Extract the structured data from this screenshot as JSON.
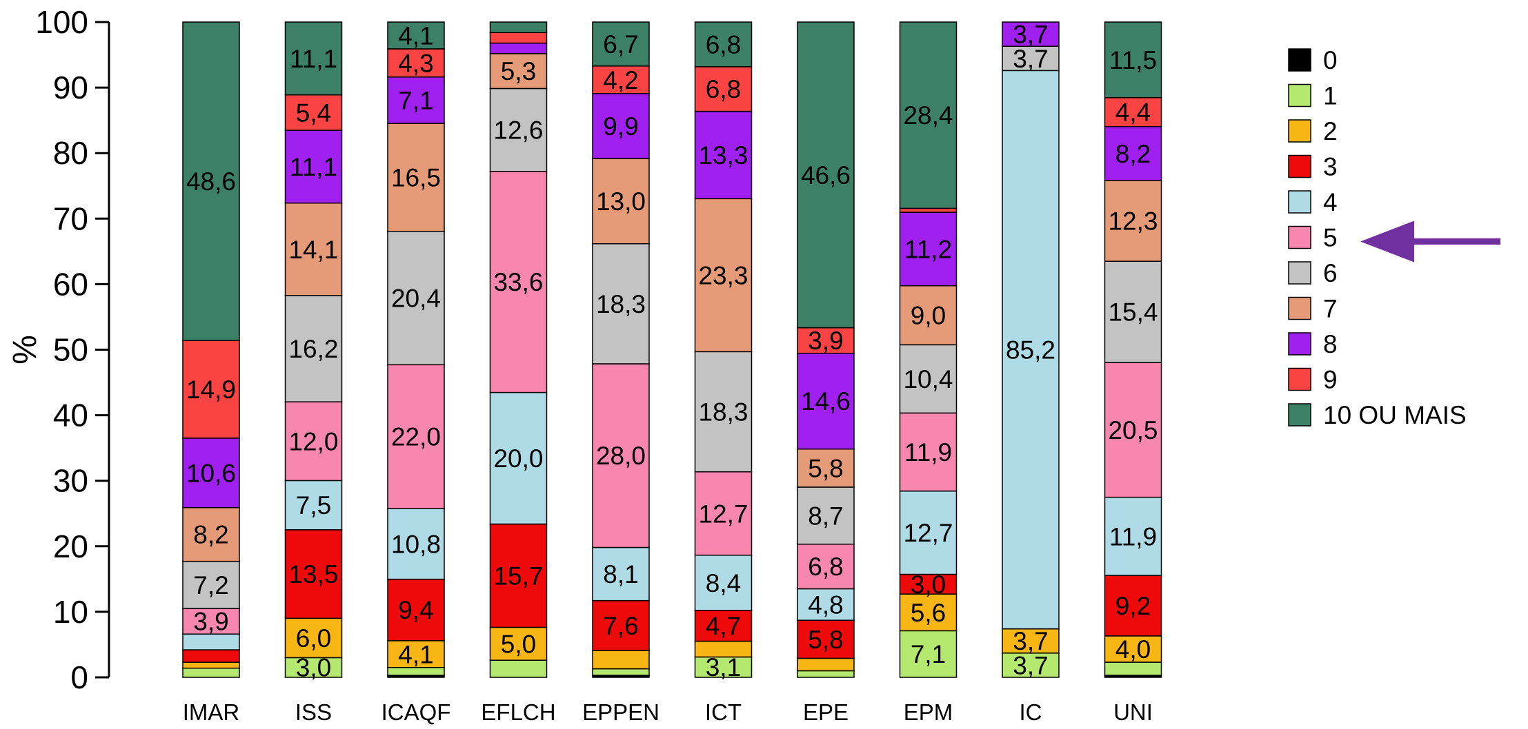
{
  "chart_data": {
    "type": "bar",
    "stacked": true,
    "ylabel": "%",
    "ylim": [
      0,
      100
    ],
    "yticks": [
      0,
      10,
      20,
      30,
      40,
      50,
      60,
      70,
      80,
      90,
      100
    ],
    "categories": [
      "IMAR",
      "ISS",
      "ICAQF",
      "EFLCH",
      "EPPEN",
      "ICT",
      "EPE",
      "EPM",
      "IC",
      "UNI"
    ],
    "legend_position": "right",
    "series": [
      {
        "name": "0",
        "color": "#000000",
        "values": [
          0.0,
          0.0,
          0.3,
          0.0,
          0.3,
          0.0,
          0.0,
          0.0,
          0.0,
          0.3
        ],
        "labels": [
          "",
          "",
          "",
          "",
          "",
          "",
          "",
          "",
          "",
          ""
        ]
      },
      {
        "name": "1",
        "color": "#b5e86e",
        "values": [
          1.4,
          3.0,
          1.2,
          2.6,
          1.0,
          3.1,
          1.0,
          7.1,
          3.7,
          2.0
        ],
        "labels": [
          "",
          "3,0",
          "",
          "",
          "",
          "3,1",
          "",
          "7,1",
          "3,7",
          ""
        ]
      },
      {
        "name": "2",
        "color": "#f8b614",
        "values": [
          0.9,
          6.0,
          4.1,
          5.0,
          2.8,
          2.4,
          1.9,
          5.6,
          3.7,
          4.0
        ],
        "labels": [
          "",
          "6,0",
          "4,1",
          "5,0",
          "",
          "",
          "",
          "5,6",
          "3,7",
          "4,0"
        ]
      },
      {
        "name": "3",
        "color": "#ee0a0a",
        "values": [
          1.9,
          13.5,
          9.4,
          15.7,
          7.6,
          4.7,
          5.8,
          3.0,
          0.0,
          9.2
        ],
        "labels": [
          "",
          "13,5",
          "9,4",
          "15,7",
          "7,6",
          "4,7",
          "5,8",
          "3,0",
          "",
          "9,2"
        ]
      },
      {
        "name": "4",
        "color": "#aedbe6",
        "values": [
          2.4,
          7.5,
          10.8,
          20.0,
          8.1,
          8.4,
          4.8,
          12.7,
          85.2,
          11.9
        ],
        "labels": [
          "",
          "7,5",
          "10,8",
          "20,0",
          "8,1",
          "8,4",
          "4,8",
          "12,7",
          "85,2",
          "11,9"
        ]
      },
      {
        "name": "5",
        "color": "#f887b0",
        "values": [
          3.9,
          12.0,
          22.0,
          33.6,
          28.0,
          12.7,
          6.8,
          11.9,
          0.0,
          20.5
        ],
        "labels": [
          "3,9",
          "12,0",
          "22,0",
          "33,6",
          "28,0",
          "12,7",
          "6,8",
          "11,9",
          "",
          "20,5"
        ]
      },
      {
        "name": "6",
        "color": "#c3c3c3",
        "values": [
          7.2,
          16.2,
          20.4,
          12.6,
          18.3,
          18.3,
          8.7,
          10.4,
          3.7,
          15.4
        ],
        "labels": [
          "7,2",
          "16,2",
          "20,4",
          "12,6",
          "18,3",
          "18,3",
          "8,7",
          "10,4",
          "3,7",
          "15,4"
        ]
      },
      {
        "name": "7",
        "color": "#e59a78",
        "values": [
          8.2,
          14.1,
          16.5,
          5.3,
          13.0,
          23.3,
          5.8,
          9.0,
          0.0,
          12.3
        ],
        "labels": [
          "8,2",
          "14,1",
          "16,5",
          "5,3",
          "13,0",
          "23,3",
          "5,8",
          "9,0",
          "",
          "12,3"
        ]
      },
      {
        "name": "8",
        "color": "#a020f0",
        "values": [
          10.6,
          11.1,
          7.1,
          1.6,
          9.9,
          13.3,
          14.6,
          11.2,
          3.7,
          8.2
        ],
        "labels": [
          "10,6",
          "11,1",
          "7,1",
          "",
          "9,9",
          "13,3",
          "14,6",
          "11,2",
          "3,7",
          "8,2"
        ]
      },
      {
        "name": "9",
        "color": "#fa4444",
        "values": [
          14.9,
          5.4,
          4.3,
          1.6,
          4.2,
          6.8,
          3.9,
          0.6,
          0.0,
          4.4
        ],
        "labels": [
          "14,9",
          "5,4",
          "4,3",
          "",
          "4,2",
          "6,8",
          "3,9",
          "",
          "",
          "4,4"
        ]
      },
      {
        "name": "10 OU MAIS",
        "color": "#3d8068",
        "values": [
          48.6,
          11.1,
          4.1,
          1.6,
          6.7,
          6.8,
          46.6,
          28.4,
          0.0,
          11.5
        ],
        "labels": [
          "48,6",
          "11,1",
          "4,1",
          "",
          "6,7",
          "6,8",
          "46,6",
          "28,4",
          "",
          "11,5"
        ]
      }
    ],
    "annotation": {
      "type": "arrow",
      "points_to_legend": "5",
      "color": "#7030a0"
    }
  }
}
